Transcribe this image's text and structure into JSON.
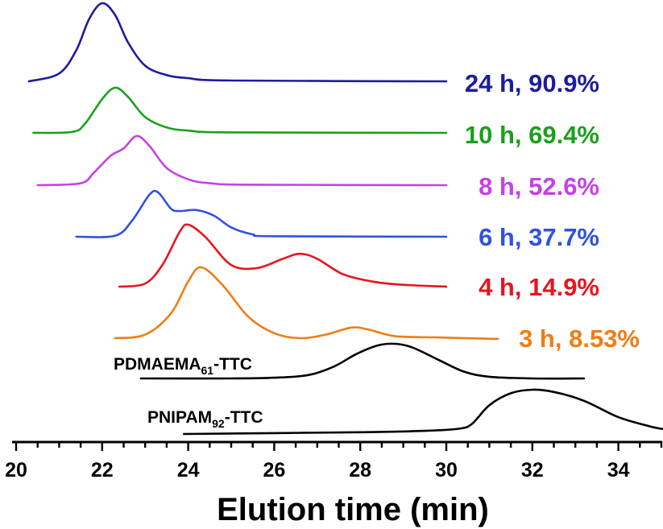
{
  "chart_data": {
    "type": "line",
    "xlabel": "Elution time (min)",
    "ylabel": "",
    "xlim": [
      20,
      35
    ],
    "x_ticks": [
      "20",
      "22",
      "24",
      "26",
      "28",
      "30",
      "32",
      "34"
    ],
    "y_axis_shown": false,
    "grid": false,
    "series": [
      {
        "name": "24 h, 90.9%",
        "color": "#1c1ca0",
        "points": [
          [
            20.3,
            0.0
          ],
          [
            21.0,
            0.1
          ],
          [
            21.4,
            0.4
          ],
          [
            21.7,
            0.8
          ],
          [
            22.0,
            1.0
          ],
          [
            22.3,
            0.85
          ],
          [
            22.6,
            0.5
          ],
          [
            23.0,
            0.2
          ],
          [
            23.5,
            0.08
          ],
          [
            24.0,
            0.04
          ],
          [
            25.0,
            0.01
          ],
          [
            30.0,
            0.0
          ]
        ]
      },
      {
        "name": "10 h, 69.4%",
        "color": "#1aa01a",
        "points": [
          [
            20.4,
            0.0
          ],
          [
            21.3,
            0.02
          ],
          [
            21.6,
            0.2
          ],
          [
            22.0,
            0.75
          ],
          [
            22.3,
            1.0
          ],
          [
            22.6,
            0.8
          ],
          [
            23.0,
            0.35
          ],
          [
            23.5,
            0.12
          ],
          [
            24.0,
            0.05
          ],
          [
            25.0,
            0.01
          ],
          [
            30.0,
            0.0
          ]
        ]
      },
      {
        "name": "8 h, 52.6%",
        "color": "#c640e8",
        "points": [
          [
            20.5,
            0.0
          ],
          [
            21.5,
            0.04
          ],
          [
            21.8,
            0.25
          ],
          [
            22.2,
            0.6
          ],
          [
            22.5,
            0.75
          ],
          [
            22.8,
            1.0
          ],
          [
            23.1,
            0.8
          ],
          [
            23.5,
            0.35
          ],
          [
            24.0,
            0.12
          ],
          [
            24.5,
            0.04
          ],
          [
            25.5,
            0.01
          ],
          [
            30.0,
            0.0
          ]
        ]
      },
      {
        "name": "6 h, 37.7%",
        "color": "#2f52e0",
        "points": [
          [
            21.4,
            0.0
          ],
          [
            22.3,
            0.02
          ],
          [
            22.7,
            0.35
          ],
          [
            23.1,
            0.9
          ],
          [
            23.3,
            0.95
          ],
          [
            23.6,
            0.6
          ],
          [
            23.8,
            0.55
          ],
          [
            24.2,
            0.57
          ],
          [
            24.6,
            0.45
          ],
          [
            25.0,
            0.2
          ],
          [
            25.5,
            0.05
          ],
          [
            26.0,
            0.01
          ],
          [
            30.0,
            0.0
          ]
        ]
      },
      {
        "name": "4 h, 14.9%",
        "color": "#e8141e",
        "points": [
          [
            22.4,
            0.0
          ],
          [
            23.0,
            0.05
          ],
          [
            23.4,
            0.35
          ],
          [
            23.8,
            0.88
          ],
          [
            24.0,
            1.0
          ],
          [
            24.4,
            0.8
          ],
          [
            25.0,
            0.35
          ],
          [
            25.6,
            0.3
          ],
          [
            26.2,
            0.45
          ],
          [
            26.6,
            0.53
          ],
          [
            27.0,
            0.45
          ],
          [
            27.6,
            0.2
          ],
          [
            28.3,
            0.08
          ],
          [
            29.0,
            0.03
          ],
          [
            30.0,
            0.0
          ]
        ]
      },
      {
        "name": "3 h, 8.53%",
        "color": "#f07d14",
        "points": [
          [
            22.3,
            0.0
          ],
          [
            23.0,
            0.05
          ],
          [
            23.6,
            0.35
          ],
          [
            24.0,
            0.8
          ],
          [
            24.3,
            1.0
          ],
          [
            24.8,
            0.75
          ],
          [
            25.4,
            0.3
          ],
          [
            26.0,
            0.07
          ],
          [
            26.6,
            0.0
          ],
          [
            27.2,
            0.05
          ],
          [
            27.8,
            0.15
          ],
          [
            28.2,
            0.12
          ],
          [
            28.8,
            0.03
          ],
          [
            29.8,
            0.01
          ],
          [
            31.2,
            -0.01
          ]
        ]
      },
      {
        "name": "PDMAEMA61-TTC",
        "color": "#000000",
        "points": [
          [
            22.9,
            0.0
          ],
          [
            25.0,
            0.0
          ],
          [
            26.0,
            0.02
          ],
          [
            26.8,
            0.1
          ],
          [
            27.4,
            0.35
          ],
          [
            27.9,
            0.7
          ],
          [
            28.4,
            0.95
          ],
          [
            28.8,
            1.0
          ],
          [
            29.2,
            0.9
          ],
          [
            29.8,
            0.55
          ],
          [
            30.4,
            0.2
          ],
          [
            31.0,
            0.05
          ],
          [
            32.0,
            0.0
          ],
          [
            33.2,
            0.0
          ]
        ]
      },
      {
        "name": "PNIPAM92-TTC",
        "color": "#000000",
        "points": [
          [
            23.9,
            0.0
          ],
          [
            26.0,
            0.02
          ],
          [
            28.0,
            0.04
          ],
          [
            29.5,
            0.07
          ],
          [
            30.3,
            0.12
          ],
          [
            30.6,
            0.23
          ],
          [
            31.0,
            0.65
          ],
          [
            31.5,
            0.92
          ],
          [
            32.0,
            1.0
          ],
          [
            32.5,
            0.95
          ],
          [
            33.2,
            0.75
          ],
          [
            34.0,
            0.38
          ],
          [
            34.7,
            0.18
          ],
          [
            35.1,
            0.1
          ]
        ]
      }
    ],
    "series_labels": [
      {
        "text": "24 h, 90.9%",
        "color": "#1c1ca0"
      },
      {
        "text": "10 h, 69.4%",
        "color": "#1aa01a"
      },
      {
        "text": "8 h, 52.6%",
        "color": "#c640e8"
      },
      {
        "text": "6 h, 37.7%",
        "color": "#2f52e0"
      },
      {
        "text": "4 h, 14.9%",
        "color": "#e8141e"
      },
      {
        "text": "3 h, 8.53%",
        "color": "#f07d14"
      }
    ],
    "reference_labels": [
      {
        "main": "PDMAEMA",
        "sub": "61",
        "suffix": "-TTC"
      },
      {
        "main": "PNIPAM",
        "sub": "92",
        "suffix": "-TTC"
      }
    ]
  }
}
